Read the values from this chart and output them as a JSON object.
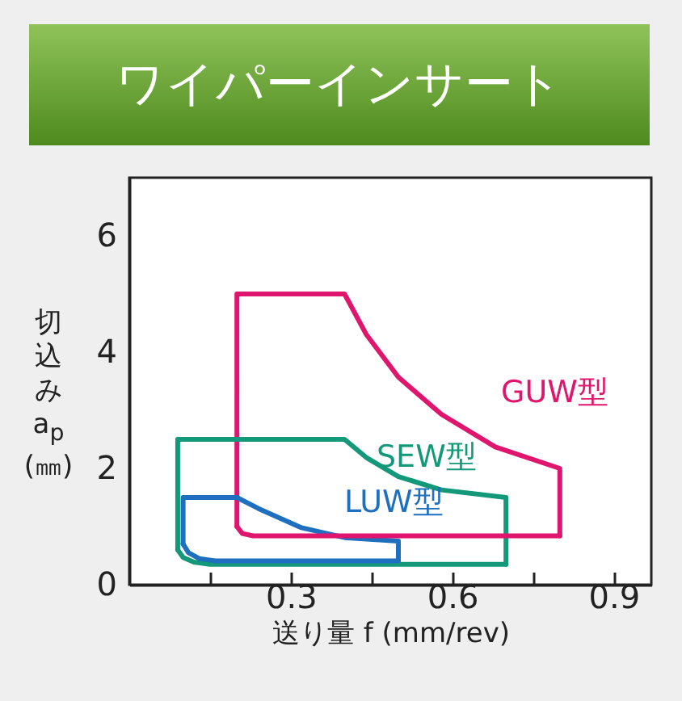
{
  "chart_data": {
    "type": "line",
    "title": "ワイパーインサート",
    "xlabel": "送り量 f (mm/rev)",
    "ylabel": "切込み a$_{p}$ (㎜)",
    "xlim": [
      0,
      0.97
    ],
    "ylim": [
      0,
      7
    ],
    "xticks": [
      {
        "value": 0.15,
        "label": null
      },
      0.3,
      {
        "value": 0.45,
        "label": null
      },
      0.6,
      {
        "value": 0.75,
        "label": null
      },
      0.9
    ],
    "yticks": [
      0,
      2,
      4,
      6
    ],
    "grid": false,
    "legend": false,
    "line_style": "solid",
    "marker": "none",
    "series": [
      {
        "name": "GUW型",
        "color": "#e0166e",
        "x": [
          0.2,
          0.2,
          0.4,
          0.44,
          0.5,
          0.58,
          0.68,
          0.8,
          0.8
        ],
        "values": [
          1,
          5,
          5,
          4.31,
          3.57,
          2.93,
          2.37,
          2,
          0.84
        ]
      },
      {
        "name": "SEW型",
        "color": "#13997a",
        "x": [
          0.09,
          0.09,
          0.4,
          0.44,
          0.5,
          0.58,
          0.7,
          0.7
        ],
        "values": [
          0.6,
          2.5,
          2.5,
          2.19,
          1.86,
          1.63,
          1.5,
          0.35
        ]
      },
      {
        "name": "LUW型",
        "color": "#1f6fbf",
        "x": [
          0.1,
          0.1,
          0.2,
          0.24,
          0.32,
          0.4,
          0.5,
          0.5
        ],
        "values": [
          0.7,
          1.5,
          1.5,
          1.31,
          0.98,
          0.81,
          0.75,
          0.41
        ]
      },
      {
        "color": "#e0166e",
        "x": [
          0.2,
          0.21,
          0.23,
          0.8
        ],
        "values": [
          1,
          0.88,
          0.84,
          0.84
        ]
      },
      {
        "color": "#13997a",
        "x": [
          0.09,
          0.1,
          0.12,
          0.15,
          0.7
        ],
        "values": [
          0.6,
          0.47,
          0.39,
          0.35,
          0.35
        ]
      },
      {
        "color": "#1f6fbf",
        "x": [
          0.1,
          0.11,
          0.13,
          0.16,
          0.5
        ],
        "values": [
          0.7,
          0.55,
          0.45,
          0.41,
          0.41
        ]
      }
    ]
  }
}
